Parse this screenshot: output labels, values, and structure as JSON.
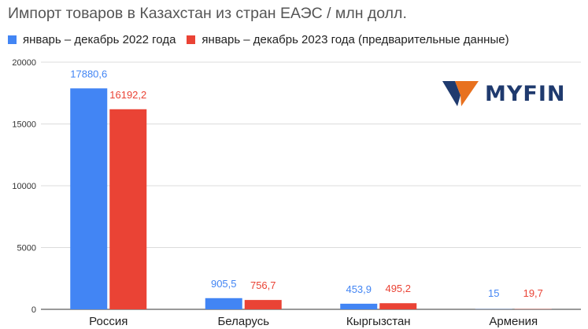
{
  "chart_data": {
    "type": "bar",
    "title": "Импорт товаров в Казахстан из стран ЕАЭС / млн долл.",
    "categories": [
      "Россия",
      "Беларусь",
      "Кыргызстан",
      "Армения"
    ],
    "series": [
      {
        "name": "январь – декабрь 2022 года",
        "color": "#4285f4",
        "values": [
          17880.6,
          905.5,
          453.9,
          15
        ],
        "labels": [
          "17880,6",
          "905,5",
          "453,9",
          "15"
        ]
      },
      {
        "name": "январь – декабрь 2023 года (предварительные данные)",
        "color": "#ea4335",
        "values": [
          16192.2,
          756.7,
          495.2,
          19.7
        ],
        "labels": [
          "16192,2",
          "756,7",
          "495,2",
          "19,7"
        ]
      }
    ],
    "ylim": [
      0,
      20000
    ],
    "yticks": [
      "0",
      "5000",
      "10000",
      "15000",
      "20000"
    ],
    "xlabel": "",
    "ylabel": "",
    "grid": true,
    "legend_position": "top-left"
  },
  "logo": {
    "text": "MYFIN",
    "icon": "myfin-v-logo-icon",
    "accent": "#e8711f",
    "dark": "#1f3a6e"
  }
}
